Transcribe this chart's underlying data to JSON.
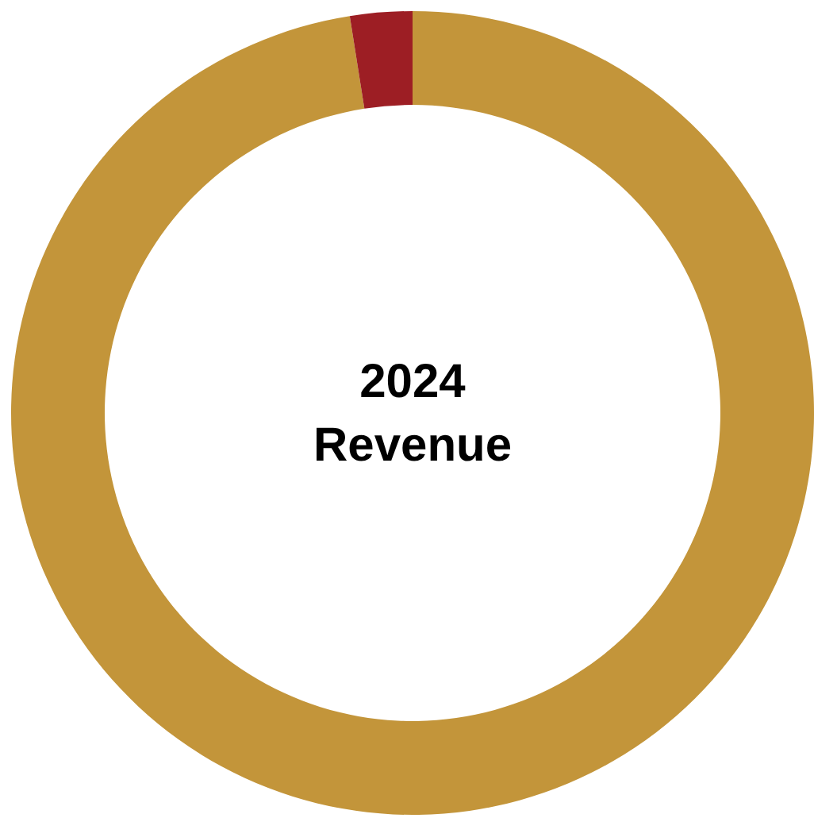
{
  "chart_data": {
    "type": "donut",
    "title": "2024\nRevenue",
    "categories": [
      null,
      null
    ],
    "values": [
      97.5,
      2.5
    ],
    "colors": [
      "#c3953a",
      "#9d1e24"
    ]
  }
}
